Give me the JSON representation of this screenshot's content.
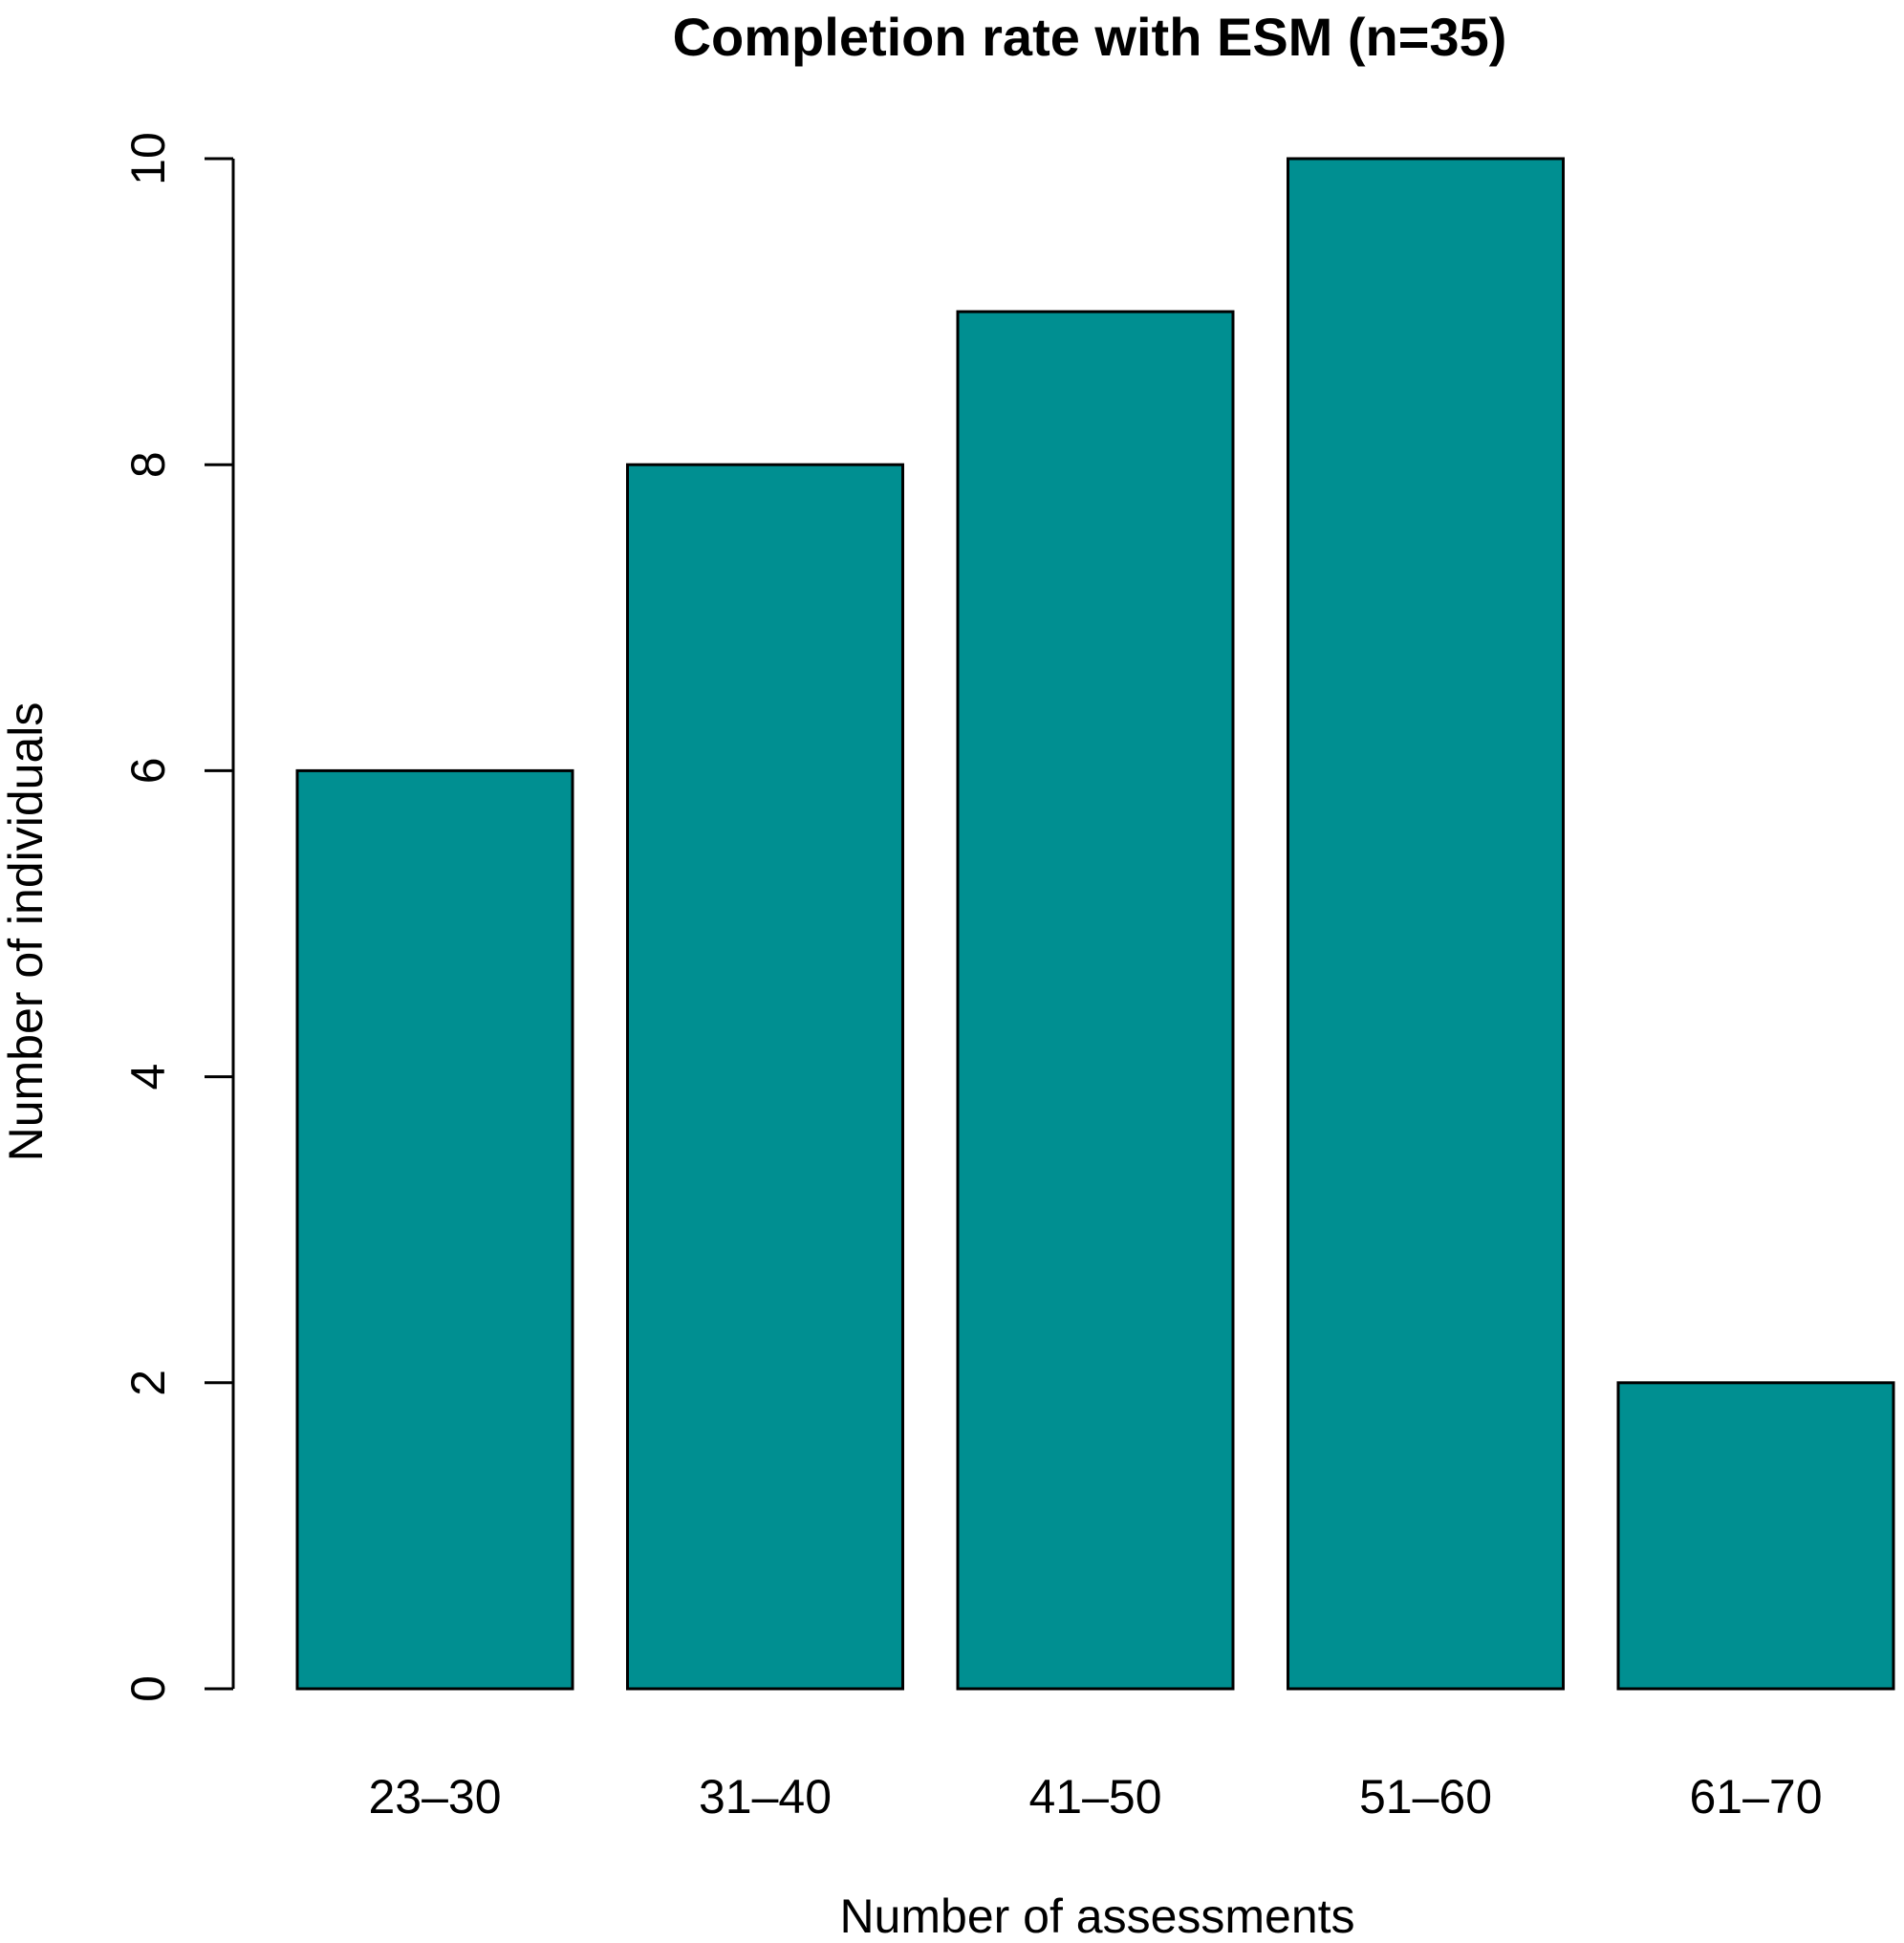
{
  "chart_data": {
    "type": "bar",
    "title": "Completion rate with ESM (n=35)",
    "xlabel": "Number of assessments",
    "ylabel": "Number of individuals",
    "categories": [
      "23–30",
      "31–40",
      "41–50",
      "51–60",
      "61–70"
    ],
    "values": [
      6,
      8,
      9,
      10,
      2
    ],
    "ylim": [
      0,
      10
    ],
    "yticks": [
      0,
      2,
      4,
      6,
      8,
      10
    ],
    "ytick_labels": [
      "0",
      "2",
      "4",
      "6",
      "8",
      "10"
    ],
    "bar_color": "#008f91",
    "grid": false,
    "legend": false
  }
}
